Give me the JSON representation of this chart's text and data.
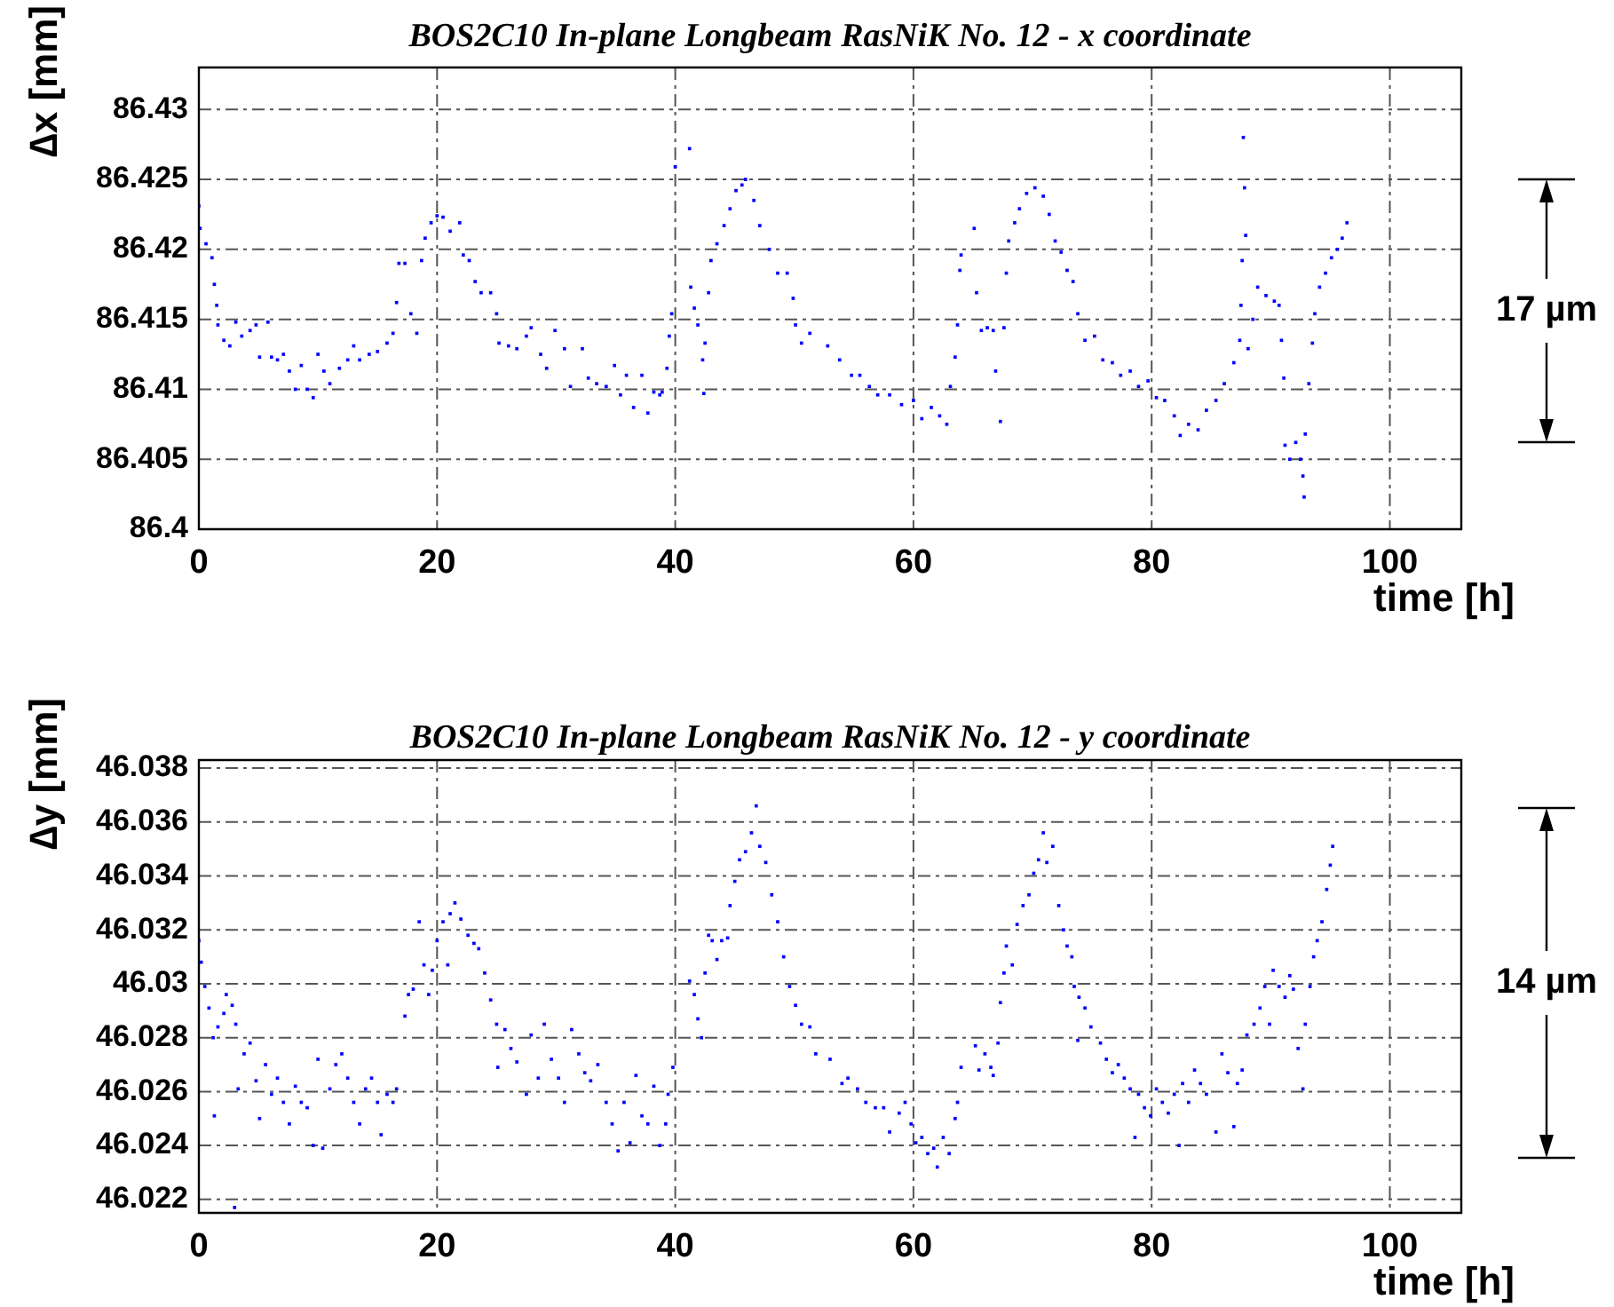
{
  "chart_data": [
    {
      "type": "scatter",
      "title": "BOS2C10 In-plane Longbeam RasNiK No. 12 - x coordinate",
      "xlabel": "time [h]",
      "ylabel": "∆x [mm]",
      "marker": "square",
      "grid": true,
      "legend": false,
      "xlim": [
        0,
        106
      ],
      "xticks": [
        0,
        20,
        40,
        60,
        80,
        100
      ],
      "ylim": [
        86.4,
        86.433
      ],
      "yticks": [
        86.4,
        86.405,
        86.41,
        86.415,
        86.42,
        86.425,
        86.43
      ],
      "annotations": [
        "17 µm"
      ],
      "series": [
        {
          "color": "#0000ff",
          "x": [
            0,
            0.1,
            0.6,
            1.1,
            1.3,
            1.5,
            1.6,
            2.1,
            2.6,
            3.1,
            3.6,
            4.3,
            4.8,
            5.1,
            5.8,
            6.1,
            6.6,
            7.1,
            7.6,
            8.1,
            8.6,
            9.1,
            9.6,
            10.0,
            10.5,
            11.0,
            11.8,
            12.5,
            13.0,
            13.5,
            14.3,
            15.0,
            15.8,
            16.3,
            16.6,
            16.8,
            17.3,
            17.8,
            18.3,
            18.7,
            19.0,
            19.5,
            20.0,
            20.5,
            21.1,
            21.9,
            22.2,
            22.7,
            23.2,
            23.7,
            24.5,
            25.0,
            25.2,
            26.0,
            26.7,
            27.5,
            27.9,
            28.7,
            29.2,
            29.9,
            30.7,
            31.2,
            32.2,
            32.7,
            33.4,
            34.2,
            34.9,
            35.4,
            35.9,
            36.5,
            37.2,
            37.7,
            38.2,
            38.7,
            38.9,
            39.3,
            39.5,
            39.7,
            40.0,
            41.2,
            41.3,
            41.6,
            41.9,
            42.3,
            42.4,
            42.5,
            42.8,
            43.0,
            43.5,
            44.1,
            44.6,
            45.1,
            45.6,
            45.9,
            46.6,
            47.1,
            47.9,
            48.6,
            49.4,
            49.9,
            50.1,
            50.6,
            51.3,
            52.8,
            53.8,
            54.8,
            55.5,
            56.3,
            57.0,
            58.0,
            59.0,
            60.0,
            60.7,
            61.5,
            62.2,
            62.8,
            63.1,
            63.5,
            63.7,
            63.9,
            64.0,
            65.1,
            65.3,
            65.7,
            66.2,
            66.7,
            66.9,
            67.3,
            67.6,
            67.8,
            68.0,
            68.5,
            68.9,
            69.5,
            70.2,
            70.9,
            71.4,
            71.9,
            72.4,
            72.9,
            73.4,
            73.8,
            74.4,
            75.2,
            75.9,
            76.7,
            77.4,
            78.2,
            78.9,
            79.7,
            80.4,
            81.1,
            81.9,
            82.4,
            83.1,
            83.9,
            84.6,
            85.4,
            86.1,
            86.9,
            87.4,
            87.5,
            87.6,
            87.7,
            87.8,
            87.9,
            88.1,
            88.5,
            88.9,
            89.6,
            90.3,
            90.7,
            90.9,
            91.1,
            91.2,
            91.6,
            92.1,
            92.5,
            92.7,
            92.8,
            92.9,
            93.2,
            93.5,
            93.7,
            94.1,
            94.6,
            95.1,
            95.6,
            96.0,
            96.4
          ],
          "values": [
            86.4231,
            86.4215,
            86.4204,
            86.4194,
            86.4175,
            86.416,
            86.4146,
            86.4135,
            86.4131,
            86.4148,
            86.4138,
            86.4142,
            86.4146,
            86.4123,
            86.4148,
            86.4123,
            86.4121,
            86.4125,
            86.4113,
            86.41,
            86.4117,
            86.41,
            86.4094,
            86.4125,
            86.4113,
            86.4104,
            86.4115,
            86.4121,
            86.4131,
            86.4121,
            86.4125,
            86.4127,
            86.4133,
            86.414,
            86.4162,
            86.419,
            86.419,
            86.4154,
            86.414,
            86.4192,
            86.4208,
            86.4219,
            86.4224,
            86.4223,
            86.4213,
            86.4219,
            86.4196,
            86.4192,
            86.4177,
            86.4169,
            86.4169,
            86.4154,
            86.4133,
            86.4131,
            86.4129,
            86.4138,
            86.4144,
            86.4125,
            86.4115,
            86.4142,
            86.4129,
            86.4102,
            86.4129,
            86.4108,
            86.4104,
            86.4102,
            86.4117,
            86.4096,
            86.411,
            86.4087,
            86.411,
            86.4083,
            86.4098,
            86.4096,
            86.4098,
            86.4115,
            86.4138,
            86.4154,
            86.4259,
            86.4272,
            86.4173,
            86.4158,
            86.4146,
            86.4121,
            86.4097,
            86.4133,
            86.4169,
            86.4192,
            86.4204,
            86.4217,
            86.4229,
            86.4242,
            86.4246,
            86.425,
            86.4235,
            86.4217,
            86.42,
            86.4183,
            86.4183,
            86.4165,
            86.4146,
            86.4133,
            86.414,
            86.4131,
            86.4121,
            86.411,
            86.411,
            86.4102,
            86.4096,
            86.4096,
            86.4089,
            86.4092,
            86.4079,
            86.4087,
            86.4081,
            86.4075,
            86.4102,
            86.4123,
            86.4146,
            86.4185,
            86.4196,
            86.4215,
            86.4169,
            86.4142,
            86.4144,
            86.4142,
            86.4113,
            86.4077,
            86.4144,
            86.4183,
            86.4206,
            86.4219,
            86.4229,
            86.424,
            86.4244,
            86.4238,
            86.4225,
            86.4206,
            86.4198,
            86.4185,
            86.4177,
            86.4154,
            86.4135,
            86.4138,
            86.4121,
            86.4119,
            86.411,
            86.4113,
            86.4102,
            86.4106,
            86.4094,
            86.4092,
            86.4081,
            86.4067,
            86.4075,
            86.4071,
            86.4085,
            86.4092,
            86.4104,
            86.4119,
            86.4135,
            86.416,
            86.4192,
            86.428,
            86.4244,
            86.421,
            86.4129,
            86.415,
            86.4173,
            86.4167,
            86.4163,
            86.416,
            86.4135,
            86.4108,
            86.406,
            86.405,
            86.4062,
            86.405,
            86.4038,
            86.4023,
            86.4068,
            86.4104,
            86.4133,
            86.4154,
            86.4173,
            86.4183,
            86.4194,
            86.42,
            86.4208,
            86.4219
          ]
        }
      ]
    },
    {
      "type": "scatter",
      "title": "BOS2C10 In-plane Longbeam RasNiK No. 12 - y coordinate",
      "xlabel": "time [h]",
      "ylabel": "∆y [mm]",
      "marker": "square",
      "grid": true,
      "legend": false,
      "xlim": [
        0,
        106
      ],
      "xticks": [
        0,
        20,
        40,
        60,
        80,
        100
      ],
      "ylim": [
        46.0215,
        46.0383
      ],
      "yticks": [
        46.022,
        46.024,
        46.026,
        46.028,
        46.03,
        46.032,
        46.034,
        46.036,
        46.038
      ],
      "annotations": [
        "14 µm"
      ],
      "series": [
        {
          "color": "#0000ff",
          "x": [
            0,
            0.2,
            0.5,
            0.85,
            1.2,
            1.3,
            1.6,
            2.1,
            2.3,
            2.8,
            3.0,
            3.1,
            3.3,
            3.8,
            4.3,
            4.8,
            5.1,
            5.6,
            6.1,
            6.6,
            7.1,
            7.6,
            8.1,
            8.6,
            9.1,
            9.6,
            10.0,
            10.4,
            11.0,
            11.5,
            12.0,
            12.5,
            13.0,
            13.5,
            14.0,
            14.5,
            15.0,
            15.3,
            15.8,
            16.3,
            16.6,
            17.3,
            17.6,
            18.0,
            18.5,
            18.9,
            19.3,
            19.6,
            20.0,
            20.5,
            20.9,
            21.1,
            21.5,
            22.0,
            22.6,
            23.1,
            23.5,
            24.0,
            24.5,
            25.0,
            25.1,
            25.7,
            26.2,
            26.7,
            27.5,
            27.9,
            28.5,
            29.0,
            29.6,
            30.2,
            30.7,
            31.3,
            31.9,
            32.4,
            32.9,
            33.5,
            34.2,
            34.7,
            35.2,
            35.7,
            36.2,
            36.7,
            37.2,
            37.7,
            38.2,
            38.7,
            39.2,
            39.4,
            39.8,
            41.2,
            41.6,
            41.9,
            42.2,
            42.5,
            42.8,
            43.1,
            43.5,
            43.9,
            44.4,
            44.6,
            45.0,
            45.4,
            45.9,
            46.4,
            46.8,
            47.1,
            47.6,
            48.1,
            48.6,
            49.1,
            49.6,
            50.1,
            50.6,
            51.3,
            51.8,
            53.0,
            54.0,
            54.5,
            55.3,
            56.0,
            56.8,
            57.5,
            58.0,
            58.8,
            59.3,
            59.8,
            60.2,
            60.7,
            61.2,
            61.7,
            62.0,
            62.5,
            63.0,
            63.5,
            63.7,
            64.0,
            65.2,
            65.5,
            66.0,
            66.5,
            66.7,
            67.1,
            67.3,
            67.6,
            67.8,
            68.3,
            68.7,
            69.2,
            69.7,
            70.1,
            70.5,
            70.9,
            71.2,
            71.7,
            72.2,
            72.6,
            72.9,
            73.3,
            73.5,
            73.8,
            73.9,
            74.4,
            74.9,
            75.7,
            76.2,
            76.7,
            77.2,
            77.7,
            78.2,
            78.6,
            78.9,
            79.4,
            79.9,
            80.4,
            80.9,
            81.4,
            81.9,
            82.3,
            82.6,
            83.1,
            83.6,
            84.1,
            84.6,
            85.4,
            85.9,
            86.4,
            86.9,
            87.2,
            87.6,
            88.0,
            88.6,
            89.1,
            89.5,
            89.9,
            90.2,
            90.7,
            91.2,
            91.6,
            91.9,
            92.3,
            92.7,
            92.9,
            93.3,
            93.6,
            93.9,
            94.3,
            94.7,
            95.0,
            95.2
          ],
          "values": [
            46.0316,
            46.0308,
            46.0299,
            46.0291,
            46.028,
            46.0251,
            46.0284,
            46.0289,
            46.0296,
            46.0292,
            46.0217,
            46.0285,
            46.0261,
            46.0274,
            46.0278,
            46.0264,
            46.025,
            46.027,
            46.0259,
            46.0265,
            46.0256,
            46.0248,
            46.0262,
            46.0256,
            46.0254,
            46.024,
            46.0272,
            46.0239,
            46.0261,
            46.027,
            46.0274,
            46.0265,
            46.0256,
            46.0248,
            46.0261,
            46.0265,
            46.0256,
            46.0244,
            46.0259,
            46.0256,
            46.0261,
            46.0288,
            46.0296,
            46.0298,
            46.0323,
            46.0307,
            46.0296,
            46.0305,
            46.0316,
            46.0323,
            46.0307,
            46.0326,
            46.033,
            46.0324,
            46.0318,
            46.0315,
            46.0313,
            46.0304,
            46.0294,
            46.0285,
            46.0269,
            46.0283,
            46.0276,
            46.0271,
            46.0259,
            46.0281,
            46.0265,
            46.0285,
            46.0272,
            46.0265,
            46.0256,
            46.0283,
            46.0274,
            46.0267,
            46.0264,
            46.027,
            46.0256,
            46.0248,
            46.0238,
            46.0256,
            46.0241,
            46.0266,
            46.0251,
            46.0248,
            46.0262,
            46.024,
            46.0248,
            46.0259,
            46.0269,
            46.0301,
            46.0296,
            46.0287,
            46.028,
            46.0304,
            46.0318,
            46.0316,
            46.0309,
            46.0316,
            46.0317,
            46.0329,
            46.0338,
            46.0346,
            46.0349,
            46.0356,
            46.0366,
            46.0351,
            46.0345,
            46.0333,
            46.0323,
            46.031,
            46.0299,
            46.0292,
            46.0285,
            46.0284,
            46.0274,
            46.0272,
            46.0263,
            46.0265,
            46.0261,
            46.0256,
            46.0254,
            46.0254,
            46.0245,
            46.0252,
            46.0256,
            46.0248,
            46.0241,
            46.0243,
            46.0237,
            46.0239,
            46.0232,
            46.0243,
            46.0237,
            46.025,
            46.0256,
            46.0269,
            46.0277,
            46.0268,
            46.0274,
            46.0269,
            46.0266,
            46.0278,
            46.0293,
            46.0304,
            46.0314,
            46.0307,
            46.0322,
            46.0329,
            46.0333,
            46.0341,
            46.0346,
            46.0356,
            46.0345,
            46.0351,
            46.0329,
            46.032,
            46.0314,
            46.031,
            46.0299,
            46.0279,
            46.0295,
            46.0291,
            46.0284,
            46.0278,
            46.0272,
            46.0267,
            46.027,
            46.0265,
            46.0261,
            46.0243,
            46.0259,
            46.0254,
            46.0251,
            46.0261,
            46.0256,
            46.0252,
            46.0259,
            46.024,
            46.0263,
            46.0256,
            46.0268,
            46.0263,
            46.0259,
            46.0245,
            46.0274,
            46.0267,
            46.0247,
            46.0263,
            46.0268,
            46.0281,
            46.0285,
            46.0291,
            46.0299,
            46.0285,
            46.0305,
            46.0299,
            46.0295,
            46.0303,
            46.0298,
            46.0276,
            46.0261,
            46.0285,
            46.0299,
            46.031,
            46.0316,
            46.0323,
            46.0335,
            46.0344,
            46.0351
          ]
        }
      ]
    }
  ]
}
